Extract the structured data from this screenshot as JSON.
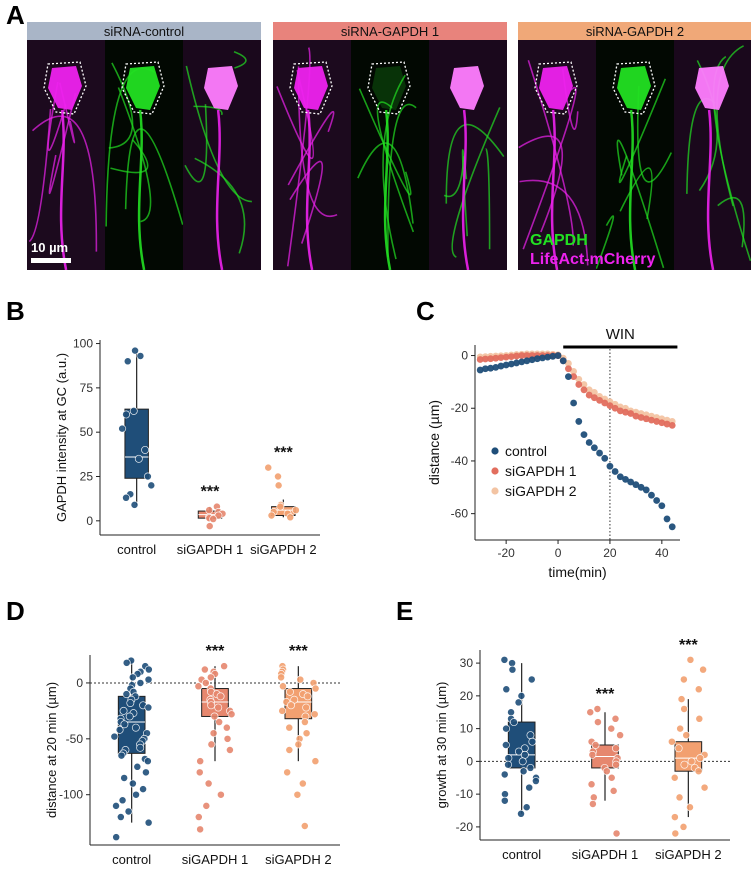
{
  "panel_a": {
    "letter": "A",
    "groups": [
      {
        "label": "siRNA-control",
        "color": "#a9b5c7"
      },
      {
        "label": "siRNA-GAPDH 1",
        "color": "#e8837c"
      },
      {
        "label": "siRNA-GAPDH 2",
        "color": "#f0a878"
      }
    ],
    "scalebar": "10 µm",
    "legend_gapdh": "GAPDH",
    "legend_lifeact": "LifeAct-mCherry",
    "colors": {
      "gapdh": "#22e022",
      "lifeact": "#ee22ee"
    }
  },
  "chart_data": [
    {
      "id": "B",
      "type": "box",
      "letter": "B",
      "ylabel": "GAPDH intensity at GC (a.u.)",
      "categories": [
        "control",
        "siGAPDH 1",
        "siGAPDH 2"
      ],
      "yticks": [
        0,
        25,
        50,
        75,
        100
      ],
      "ylim": [
        -8,
        102
      ],
      "colors": [
        "#1f4e79",
        "#e6876e",
        "#f2a070"
      ],
      "boxes": [
        {
          "q1": 24,
          "median": 36,
          "q3": 63,
          "wlo": 9,
          "whi": 95
        },
        {
          "q1": 1.5,
          "median": 3.5,
          "q3": 5.5,
          "wlo": 0,
          "whi": 8
        },
        {
          "q1": 3,
          "median": 6,
          "q3": 8,
          "wlo": 2,
          "whi": 12
        }
      ],
      "points": [
        [
          96,
          93,
          90,
          62,
          60,
          52,
          40,
          35,
          25,
          20,
          15,
          13,
          9
        ],
        [
          8,
          6,
          5,
          4,
          3,
          2,
          1.5,
          1,
          -3
        ],
        [
          30,
          25,
          20,
          9,
          8,
          6,
          5,
          4,
          3,
          2
        ]
      ],
      "significance": [
        "",
        "***",
        "***"
      ]
    },
    {
      "id": "C",
      "type": "scatter",
      "letter": "C",
      "xlabel": "time(min)",
      "ylabel": "distance (µm)",
      "xticks": [
        -20,
        0,
        20,
        40
      ],
      "yticks": [
        0,
        -20,
        -40,
        -60
      ],
      "xlim": [
        -32,
        47
      ],
      "ylim": [
        -70,
        4
      ],
      "bar_label": "WIN",
      "bar_range": [
        2,
        46
      ],
      "vline": 20,
      "series": [
        {
          "name": "control",
          "color": "#1f4e79",
          "x": [
            -30,
            -28,
            -26,
            -24,
            -22,
            -20,
            -18,
            -16,
            -14,
            -12,
            -10,
            -8,
            -6,
            -4,
            -2,
            0,
            2,
            4,
            6,
            8,
            10,
            12,
            14,
            16,
            18,
            20,
            22,
            24,
            26,
            28,
            30,
            32,
            34,
            36,
            38,
            40,
            42,
            44
          ],
          "y": [
            -5.5,
            -5,
            -4.8,
            -4.5,
            -4,
            -3.6,
            -3.2,
            -2.8,
            -2.4,
            -2,
            -1.6,
            -1.2,
            -0.9,
            -0.6,
            -0.3,
            0,
            -2,
            -8,
            -18,
            -25,
            -30,
            -33,
            -35,
            -37,
            -39,
            -42,
            -44,
            -46,
            -47,
            -48,
            -49,
            -50,
            -51,
            -53,
            -55,
            -57,
            -62,
            -65
          ]
        },
        {
          "name": "siGAPDH 1",
          "color": "#e26e5e",
          "x": [
            -30,
            -28,
            -26,
            -24,
            -22,
            -20,
            -18,
            -16,
            -14,
            -12,
            -10,
            -8,
            -6,
            -4,
            -2,
            0,
            2,
            4,
            6,
            8,
            10,
            12,
            14,
            16,
            18,
            20,
            22,
            24,
            26,
            28,
            30,
            32,
            34,
            36,
            38,
            40,
            42,
            44
          ],
          "y": [
            -1.5,
            -1.3,
            -1.2,
            -1,
            -0.8,
            -0.6,
            -0.4,
            -0.2,
            0,
            0,
            0,
            0,
            0,
            0,
            0,
            0,
            -2,
            -5,
            -8,
            -11,
            -13,
            -15,
            -16,
            -17,
            -18,
            -19,
            -20,
            -21,
            -21.5,
            -22,
            -23,
            -23.5,
            -24,
            -24.5,
            -25,
            -25.5,
            -26,
            -26.5
          ]
        },
        {
          "name": "siGAPDH 2",
          "color": "#f3c4a3",
          "x": [
            -30,
            -28,
            -26,
            -24,
            -22,
            -20,
            -18,
            -16,
            -14,
            -12,
            -10,
            -8,
            -6,
            -4,
            -2,
            0,
            2,
            4,
            6,
            8,
            10,
            12,
            14,
            16,
            18,
            20,
            22,
            24,
            26,
            28,
            30,
            32,
            34,
            36,
            38,
            40,
            42,
            44
          ],
          "y": [
            -0.5,
            -0.4,
            -0.3,
            -0.2,
            -0.1,
            0,
            0.2,
            0.4,
            0.5,
            0.6,
            0.6,
            0.6,
            0.6,
            0.6,
            0.5,
            0.3,
            -1,
            -3,
            -6,
            -9,
            -11,
            -13,
            -14,
            -15.5,
            -16.5,
            -17.5,
            -18.5,
            -19.5,
            -20,
            -21,
            -21.5,
            -22,
            -22.5,
            -23,
            -23.5,
            -24,
            -24.5,
            -25
          ]
        }
      ],
      "legend_position": "bottom-left"
    },
    {
      "id": "D",
      "type": "box",
      "letter": "D",
      "ylabel": "distance at 20 min (µm)",
      "categories": [
        "control",
        "siGAPDH 1",
        "siGAPDH 2"
      ],
      "yticks": [
        0,
        -50,
        -100
      ],
      "ylim": [
        -145,
        25
      ],
      "refline": 0,
      "colors": [
        "#1f4e79",
        "#e6876e",
        "#f2a070"
      ],
      "boxes": [
        {
          "q1": -63,
          "median": -35,
          "q3": -12,
          "wlo": -125,
          "whi": 20
        },
        {
          "q1": -30,
          "median": -17,
          "q3": -5,
          "wlo": -70,
          "whi": 15
        },
        {
          "q1": -32,
          "median": -17,
          "q3": -5,
          "wlo": -70,
          "whi": 15
        }
      ],
      "points": [
        [
          20,
          18,
          15,
          12,
          10,
          8,
          5,
          3,
          0,
          -2,
          -5,
          -8,
          -10,
          -12,
          -15,
          -18,
          -20,
          -22,
          -25,
          -27,
          -30,
          -32,
          -35,
          -37,
          -40,
          -42,
          -45,
          -48,
          -50,
          -52,
          -55,
          -58,
          -60,
          -63,
          -65,
          -68,
          -70,
          -75,
          -80,
          -85,
          -90,
          -95,
          -100,
          -105,
          -110,
          -115,
          -120,
          -125,
          -138
        ],
        [
          15,
          12,
          10,
          8,
          5,
          3,
          0,
          -3,
          -5,
          -8,
          -10,
          -12,
          -15,
          -17,
          -20,
          -22,
          -25,
          -28,
          -30,
          -35,
          -40,
          -45,
          -50,
          -55,
          -60,
          -70,
          -80,
          -90,
          -100,
          -110,
          -120,
          -131
        ],
        [
          15,
          12,
          10,
          8,
          5,
          3,
          0,
          -3,
          -5,
          -8,
          -10,
          -12,
          -15,
          -17,
          -20,
          -22,
          -25,
          -28,
          -30,
          -35,
          -40,
          -45,
          -50,
          -55,
          -60,
          -70,
          -80,
          -90,
          -100,
          -128
        ]
      ],
      "significance": [
        "",
        "***",
        "***"
      ]
    },
    {
      "id": "E",
      "type": "box",
      "letter": "E",
      "ylabel": "growth at  30 min (µm)",
      "categories": [
        "control",
        "siGAPDH 1",
        "siGAPDH 2"
      ],
      "yticks": [
        30,
        20,
        10,
        0,
        -10,
        -20
      ],
      "ylim": [
        -24,
        34
      ],
      "refline": 0,
      "colors": [
        "#1f4e79",
        "#e6876e",
        "#f2a070"
      ],
      "boxes": [
        {
          "q1": -2,
          "median": 2,
          "q3": 12,
          "wlo": -16,
          "whi": 30
        },
        {
          "q1": -2,
          "median": 1.5,
          "q3": 5,
          "wlo": -12,
          "whi": 15
        },
        {
          "q1": -3,
          "median": 1,
          "q3": 6,
          "wlo": -17,
          "whi": 19
        }
      ],
      "points": [
        [
          31,
          30,
          28,
          25,
          22,
          20,
          18,
          15,
          13,
          12,
          10,
          8,
          6,
          5,
          4,
          3,
          2,
          1,
          0,
          -1,
          -2,
          -3,
          -4,
          -5,
          -6,
          -8,
          -10,
          -12,
          -14,
          -16
        ],
        [
          16,
          15,
          13,
          12,
          10,
          8,
          6,
          5,
          4,
          3,
          2,
          1,
          0,
          -1,
          -2,
          -3,
          -5,
          -7,
          -9,
          -11,
          -13,
          -22
        ],
        [
          31,
          28,
          25,
          22,
          19,
          16,
          13,
          10,
          8,
          6,
          4,
          2,
          1,
          0,
          -1,
          -2,
          -3,
          -5,
          -8,
          -11,
          -14,
          -17,
          -20,
          -22
        ]
      ],
      "significance": [
        "",
        "***",
        "***"
      ]
    }
  ]
}
